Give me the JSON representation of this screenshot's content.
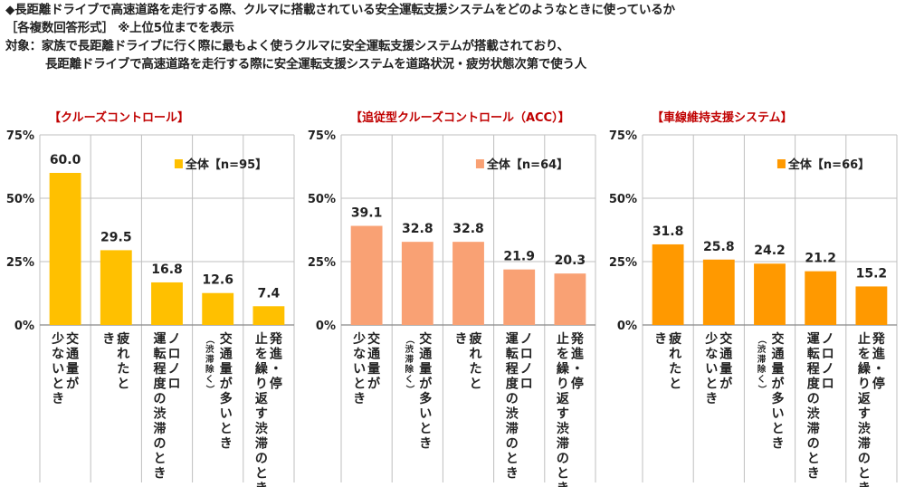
{
  "header": {
    "question": "◆長距離ドライブで高速道路を走行する際、クルマに搭載されている安全運転支援システムをどのようなときに使っているか",
    "format": "［各複数回答形式］ ※上位5位までを表示",
    "target_line1": "対象：家族で長距離ドライブに行く際に最もよく使うクルマに安全運転支援システムが搭載されており、",
    "target_line2": "長距離ドライブで高速道路を走行する際に安全運転支援システムを道路状況・疲労状態次第で使う人"
  },
  "colors": {
    "grid": "#bfbfbf",
    "axis": "#888888",
    "title": "#c00000",
    "text": "#222222"
  },
  "chart_data": [
    {
      "type": "bar",
      "title": "【クルーズコントロール】",
      "ylim": [
        0,
        75
      ],
      "yticks": [
        "0%",
        "25%",
        "50%",
        "75%"
      ],
      "legend": "全体【n=95】",
      "color": "#ffc000",
      "categories": [
        {
          "main": "交通量が少ないとき",
          "note": ""
        },
        {
          "main": "疲れたとき",
          "note": ""
        },
        {
          "main": "ノロノロ運転程度の渋滞のとき",
          "note": ""
        },
        {
          "main": "交通量が多いとき",
          "note": "（渋滞除く）"
        },
        {
          "main": "発進・停止を繰り返す渋滞のとき",
          "note": ""
        }
      ],
      "values": [
        60.0,
        29.5,
        16.8,
        12.6,
        7.4
      ],
      "labels": [
        "60.0",
        "29.5",
        "16.8",
        "12.6",
        "7.4"
      ]
    },
    {
      "type": "bar",
      "title": "【追従型クルーズコントロール（ACC）】",
      "ylim": [
        0,
        75
      ],
      "yticks": [
        "0%",
        "25%",
        "50%",
        "75%"
      ],
      "legend": "全体【n=64】",
      "color": "#f9a174",
      "categories": [
        {
          "main": "交通量が少ないとき",
          "note": ""
        },
        {
          "main": "交通量が多いとき",
          "note": "（渋滞除く）"
        },
        {
          "main": "疲れたとき",
          "note": ""
        },
        {
          "main": "ノロノロ運転程度の渋滞のとき",
          "note": ""
        },
        {
          "main": "発進・停止を繰り返す渋滞のとき",
          "note": ""
        }
      ],
      "values": [
        39.1,
        32.8,
        32.8,
        21.9,
        20.3
      ],
      "labels": [
        "39.1",
        "32.8",
        "32.8",
        "21.9",
        "20.3"
      ]
    },
    {
      "type": "bar",
      "title": "【車線維持支援システム】",
      "ylim": [
        0,
        75
      ],
      "yticks": [
        "0%",
        "25%",
        "50%",
        "75%"
      ],
      "legend": "全体【n=66】",
      "color": "#ff9900",
      "categories": [
        {
          "main": "疲れたとき",
          "note": ""
        },
        {
          "main": "交通量が少ないとき",
          "note": ""
        },
        {
          "main": "交通量が多いとき",
          "note": "（渋滞除く）"
        },
        {
          "main": "ノロノロ運転程度の渋滞のとき",
          "note": ""
        },
        {
          "main": "発進・停止を繰り返す渋滞のとき",
          "note": ""
        }
      ],
      "values": [
        31.8,
        25.8,
        24.2,
        21.2,
        15.2
      ],
      "labels": [
        "31.8",
        "25.8",
        "24.2",
        "21.2",
        "15.2"
      ]
    }
  ]
}
